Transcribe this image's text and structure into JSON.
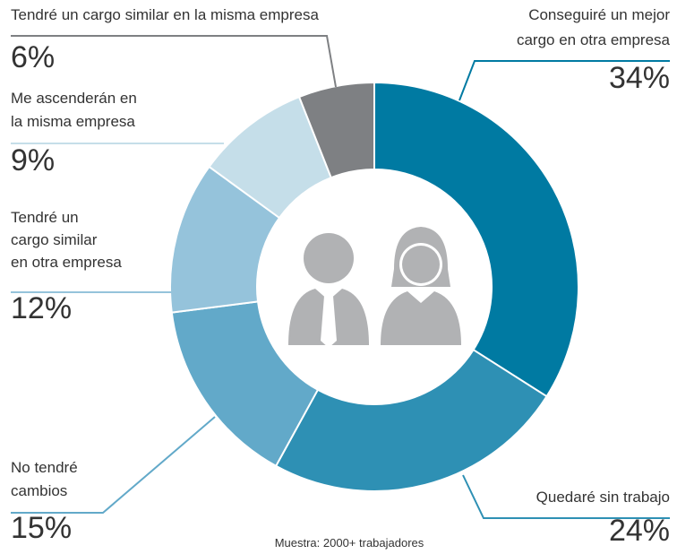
{
  "chart_data": {
    "type": "donut",
    "categories": [
      [
        "Conseguiré un mejor",
        "cargo en otra empresa"
      ],
      [
        "Quedaré sin trabajo"
      ],
      [
        "No tendré",
        "cambios"
      ],
      [
        "Tendré un",
        "cargo similar",
        "en otra empresa"
      ],
      [
        "Me ascenderán en",
        "la misma empresa"
      ],
      [
        "Tendré un cargo similar en la misma empresa"
      ]
    ],
    "values": [
      34,
      24,
      15,
      12,
      9,
      6
    ],
    "value_labels": [
      "34%",
      "24%",
      "15%",
      "12%",
      "9%",
      "6%"
    ],
    "colors": [
      "#007aa2",
      "#2e90b4",
      "#62a9c9",
      "#95c3db",
      "#c5dee9",
      "#7e8083"
    ],
    "note": "Muestra: 2000+ trabajadores"
  }
}
